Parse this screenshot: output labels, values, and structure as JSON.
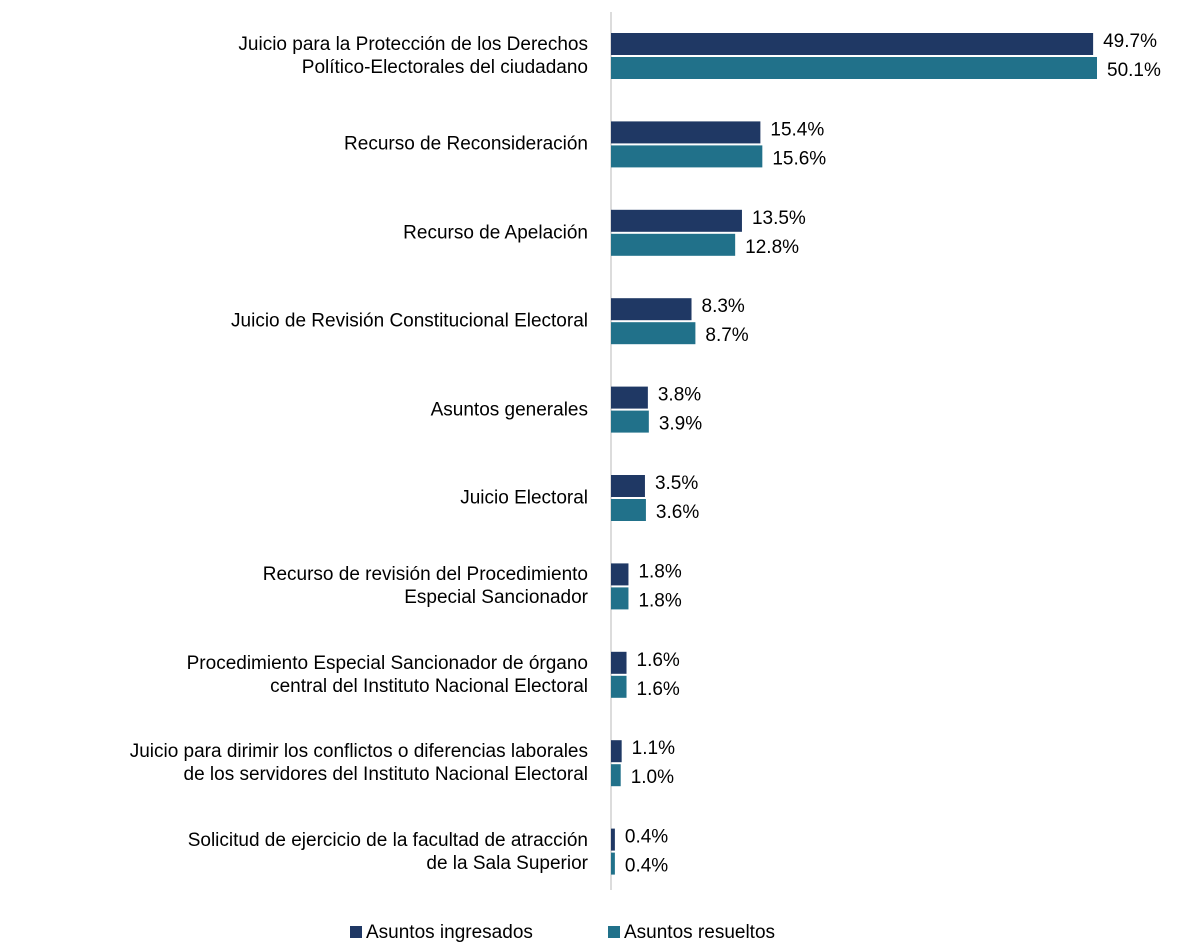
{
  "chart_data": {
    "type": "bar",
    "orientation": "horizontal",
    "categories": [
      "Juicio para la Protección de los Derechos\nPolítico-Electorales del ciudadano",
      "Recurso de Reconsideración",
      "Recurso de Apelación",
      "Juicio de Revisión Constitucional Electoral",
      "Asuntos generales",
      "Juicio Electoral",
      "Recurso de revisión del Procedimiento\nEspecial Sancionador",
      "Procedimiento Especial Sancionador de órgano\ncentral del Instituto Nacional Electoral",
      "Juicio para dirimir los conflictos o diferencias laborales\nde los servidores del Instituto Nacional Electoral",
      "Solicitud de ejercicio de la facultad de atracción\nde la Sala Superior"
    ],
    "series": [
      {
        "name": "Asuntos ingresados",
        "color": "#1f3864",
        "values": [
          49.7,
          15.4,
          13.5,
          8.3,
          3.8,
          3.5,
          1.8,
          1.6,
          1.1,
          0.4
        ],
        "value_labels": [
          "49.7%",
          "15.4%",
          "13.5%",
          "8.3%",
          "3.8%",
          "3.5%",
          "1.8%",
          "1.6%",
          "1.1%",
          "0.4%"
        ]
      },
      {
        "name": "Asuntos resueltos",
        "color": "#21718a",
        "values": [
          50.1,
          15.6,
          12.8,
          8.7,
          3.9,
          3.6,
          1.8,
          1.6,
          1.0,
          0.4
        ],
        "value_labels": [
          "50.1%",
          "15.6%",
          "12.8%",
          "8.7%",
          "3.9%",
          "3.6%",
          "1.8%",
          "1.6%",
          "1.0%",
          "0.4%"
        ]
      }
    ],
    "legend": "bottom"
  }
}
